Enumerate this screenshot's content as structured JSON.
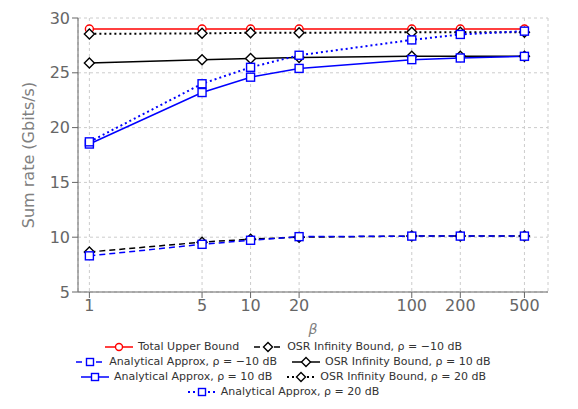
{
  "chart_data": {
    "type": "line",
    "x": [
      1,
      5,
      10,
      20,
      100,
      200,
      500
    ],
    "xlabel": "β",
    "ylabel": "Sum rate (Gbits/s)",
    "log": "x",
    "xlim": [
      0.85,
      700
    ],
    "xticks": [
      1,
      5,
      10,
      20,
      100,
      200,
      500
    ],
    "ylim": [
      5,
      30
    ],
    "yticks": [
      5,
      10,
      15,
      20,
      25,
      30
    ],
    "grid": true,
    "legend": "bottom",
    "series": [
      {
        "name": "Total Upper Bound",
        "color": "#ff0000",
        "line_style": "solid",
        "marker": "circle",
        "values": [
          29.0,
          29.0,
          29.0,
          29.0,
          29.0,
          29.0,
          29.0
        ]
      },
      {
        "name": "OSR Infinity Bound, ρ = −10 dB",
        "color": "#000000",
        "line_style": "dashed",
        "marker": "diamond",
        "values": [
          8.65,
          9.55,
          9.82,
          10.0,
          10.1,
          10.1,
          10.1
        ]
      },
      {
        "name": "Analytical Approx, ρ = −10 dB",
        "color": "#0000ff",
        "line_style": "dashed",
        "marker": "square",
        "values": [
          8.3,
          9.35,
          9.72,
          10.05,
          10.1,
          10.1,
          10.1
        ]
      },
      {
        "name": "OSR Infinity Bound, ρ = 10 dB",
        "color": "#000000",
        "line_style": "solid",
        "marker": "diamond",
        "values": [
          25.9,
          26.2,
          26.3,
          26.4,
          26.5,
          26.5,
          26.5
        ]
      },
      {
        "name": "Analytical Approx, ρ = 10 dB",
        "color": "#0000ff",
        "line_style": "solid",
        "marker": "square",
        "values": [
          18.5,
          23.2,
          24.6,
          25.4,
          26.2,
          26.35,
          26.5
        ]
      },
      {
        "name": "OSR Infinity Bound, ρ = 20 dB",
        "color": "#000000",
        "line_style": "dotted",
        "marker": "diamond",
        "values": [
          28.55,
          28.6,
          28.65,
          28.65,
          28.7,
          28.7,
          28.7
        ]
      },
      {
        "name": "Analytical Approx, ρ = 20 dB",
        "color": "#0000ff",
        "line_style": "dotted",
        "marker": "square",
        "values": [
          18.7,
          24.0,
          25.5,
          26.6,
          28.0,
          28.5,
          28.8
        ]
      }
    ]
  }
}
